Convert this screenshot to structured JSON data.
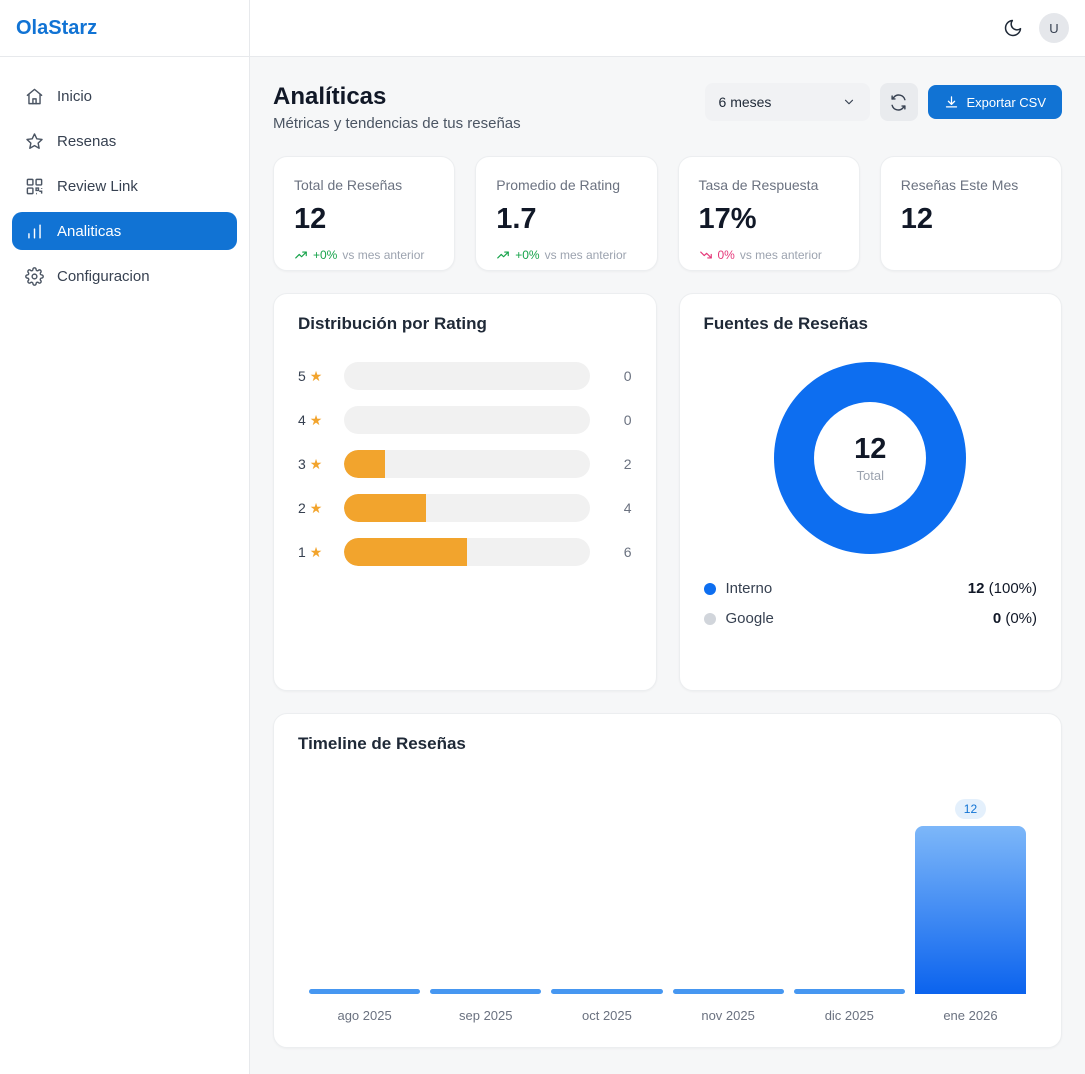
{
  "brand": {
    "logo": "OlaStarz"
  },
  "topbar": {
    "avatar_initial": "U"
  },
  "sidebar": {
    "items": [
      {
        "label": "Inicio"
      },
      {
        "label": "Resenas"
      },
      {
        "label": "Review Link"
      },
      {
        "label": "Analiticas"
      },
      {
        "label": "Configuracion"
      }
    ]
  },
  "header": {
    "title": "Analíticas",
    "subtitle": "Métricas y tendencias de tus reseñas",
    "period_selected": "6 meses",
    "export_label": "Exportar CSV"
  },
  "stats": [
    {
      "label": "Total de Reseñas",
      "value": "12",
      "trend": "+0%",
      "trend_note": "vs mes anterior",
      "direction": "up"
    },
    {
      "label": "Promedio de Rating",
      "value": "1.7",
      "trend": "+0%",
      "trend_note": "vs mes anterior",
      "direction": "up"
    },
    {
      "label": "Tasa de Respuesta",
      "value": "17%",
      "trend": "0%",
      "trend_note": "vs mes anterior",
      "direction": "down"
    },
    {
      "label": "Reseñas Este Mes",
      "value": "12"
    }
  ],
  "chart_data": [
    {
      "type": "bar",
      "orientation": "horizontal",
      "title": "Distribución por Rating",
      "categories": [
        "5",
        "4",
        "3",
        "2",
        "1"
      ],
      "values": [
        0,
        0,
        2,
        4,
        6
      ],
      "total": 12,
      "bar_color": "#f2a42d",
      "track_color": "#f1f1f1"
    },
    {
      "type": "pie",
      "title": "Fuentes de Reseñas",
      "center_value": "12",
      "center_label": "Total",
      "slices": [
        {
          "label": "Interno",
          "value": 12,
          "pct": "(100%)",
          "color": "#0d6ef0"
        },
        {
          "label": "Google",
          "value": 0,
          "pct": "(0%)",
          "color": "#d1d5db"
        }
      ],
      "legend_position": "bottom"
    },
    {
      "type": "bar",
      "title": "Timeline de Reseñas",
      "categories": [
        "ago 2025",
        "sep 2025",
        "oct 2025",
        "nov 2025",
        "dic 2025",
        "ene 2026"
      ],
      "values": [
        0,
        0,
        0,
        0,
        0,
        12
      ],
      "ylim": [
        0,
        12
      ],
      "bar_gradient": [
        "#7db7f9",
        "#0b63ee"
      ]
    }
  ],
  "colors": {
    "primary": "#1173d4",
    "accent_orange": "#f2a42d"
  }
}
